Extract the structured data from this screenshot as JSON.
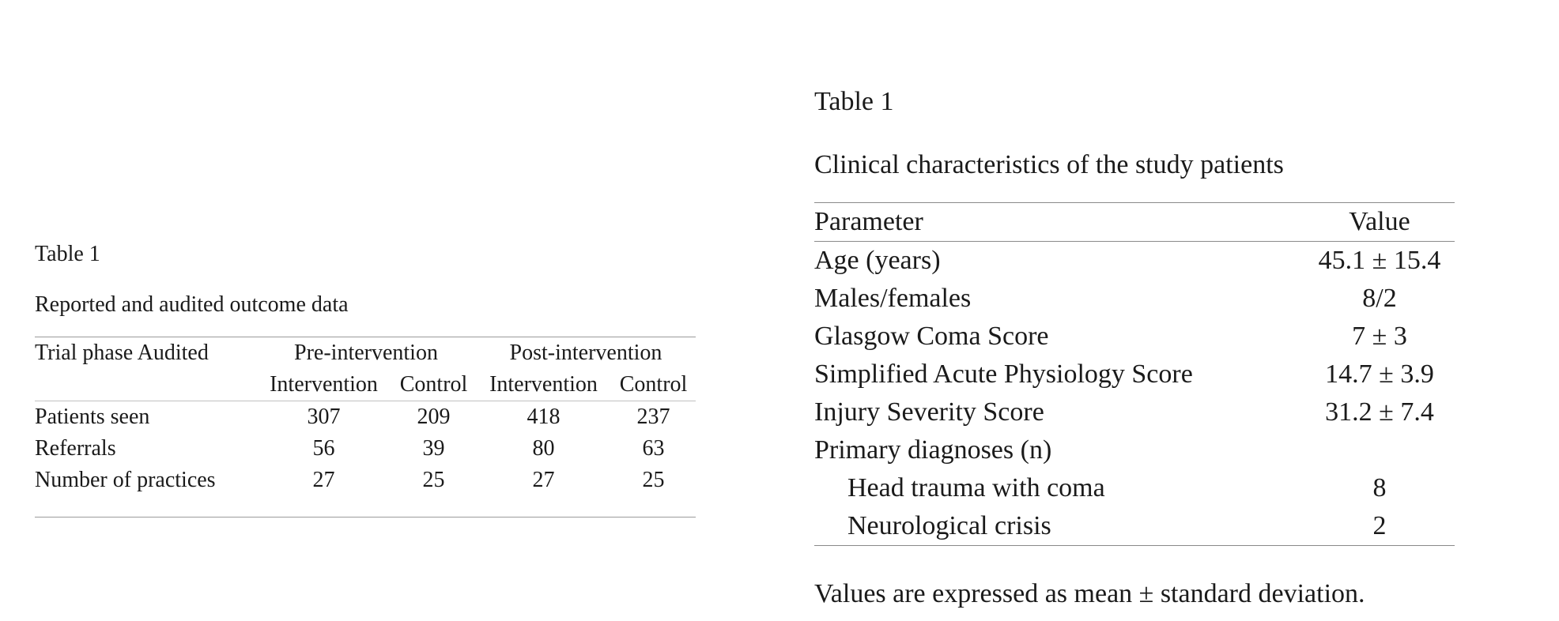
{
  "left_table": {
    "label": "Table 1",
    "caption": "Reported and audited outcome data",
    "header_row1": {
      "col0": "Trial phase Audited",
      "group1": "Pre-intervention",
      "group2": "Post-intervention"
    },
    "header_row2": [
      "Intervention",
      "Control",
      "Intervention",
      "Control"
    ],
    "rows": [
      {
        "label": "Patients seen",
        "values": [
          "307",
          "209",
          "418",
          "237"
        ]
      },
      {
        "label": "Referrals",
        "values": [
          "56",
          "39",
          "80",
          "63"
        ]
      },
      {
        "label": "Number of practices",
        "values": [
          "27",
          "25",
          "27",
          "25"
        ]
      }
    ]
  },
  "right_table": {
    "label": "Table 1",
    "caption": "Clinical characteristics of the study patients",
    "headers": {
      "parameter": "Parameter",
      "value": "Value"
    },
    "rows": [
      {
        "parameter": "Age (years)",
        "value": "45.1 ± 15.4"
      },
      {
        "parameter": "Males/females",
        "value": "8/2"
      },
      {
        "parameter": "Glasgow Coma Score",
        "value": "7 ± 3"
      },
      {
        "parameter": "Simplified Acute Physiology Score",
        "value": "14.7 ± 3.9"
      },
      {
        "parameter": "Injury Severity Score",
        "value": "31.2 ± 7.4"
      },
      {
        "parameter": "Primary diagnoses (n)",
        "value": ""
      },
      {
        "parameter": "Head trauma with coma",
        "value": "8"
      },
      {
        "parameter": "Neurological crisis",
        "value": "2"
      }
    ],
    "footnote": "Values are expressed as mean ± standard deviation."
  }
}
